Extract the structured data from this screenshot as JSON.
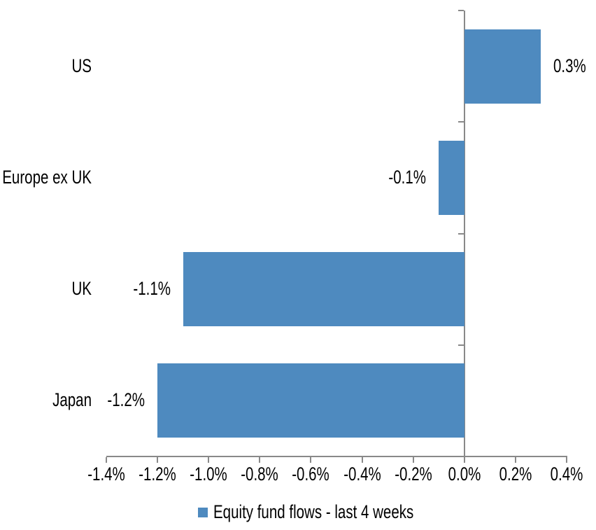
{
  "chart_data": {
    "type": "bar",
    "orientation": "horizontal",
    "title": "",
    "categories": [
      "US",
      "Europe ex UK",
      "UK",
      "Japan"
    ],
    "series": [
      {
        "name": "Equity fund flows - last 4 weeks",
        "values": [
          0.3,
          -0.1,
          -1.1,
          -1.2
        ]
      }
    ],
    "data_labels": [
      "0.3%",
      "-0.1%",
      "-1.1%",
      "-1.2%"
    ],
    "value_unit": "percent",
    "x_tick_labels": [
      "-1.4%",
      "-1.2%",
      "-1.0%",
      "-0.8%",
      "-0.6%",
      "-0.4%",
      "-0.2%",
      "0.0%",
      "0.2%",
      "0.4%"
    ],
    "x_tick_values": [
      -1.4,
      -1.2,
      -1.0,
      -0.8,
      -0.6,
      -0.4,
      -0.2,
      0.0,
      0.2,
      0.4
    ],
    "xlim": [
      -1.4,
      0.4
    ],
    "xlabel": "",
    "ylabel": "",
    "grid": false,
    "legend": {
      "position": "bottom",
      "entries": [
        {
          "label": "Equity fund flows - last 4 weeks",
          "marker_color": "#4E8ABF"
        }
      ]
    },
    "colors": {
      "bar": "#4E8ABF",
      "axis": "#898989",
      "text": "#000000",
      "background": "#FFFFFF"
    }
  }
}
